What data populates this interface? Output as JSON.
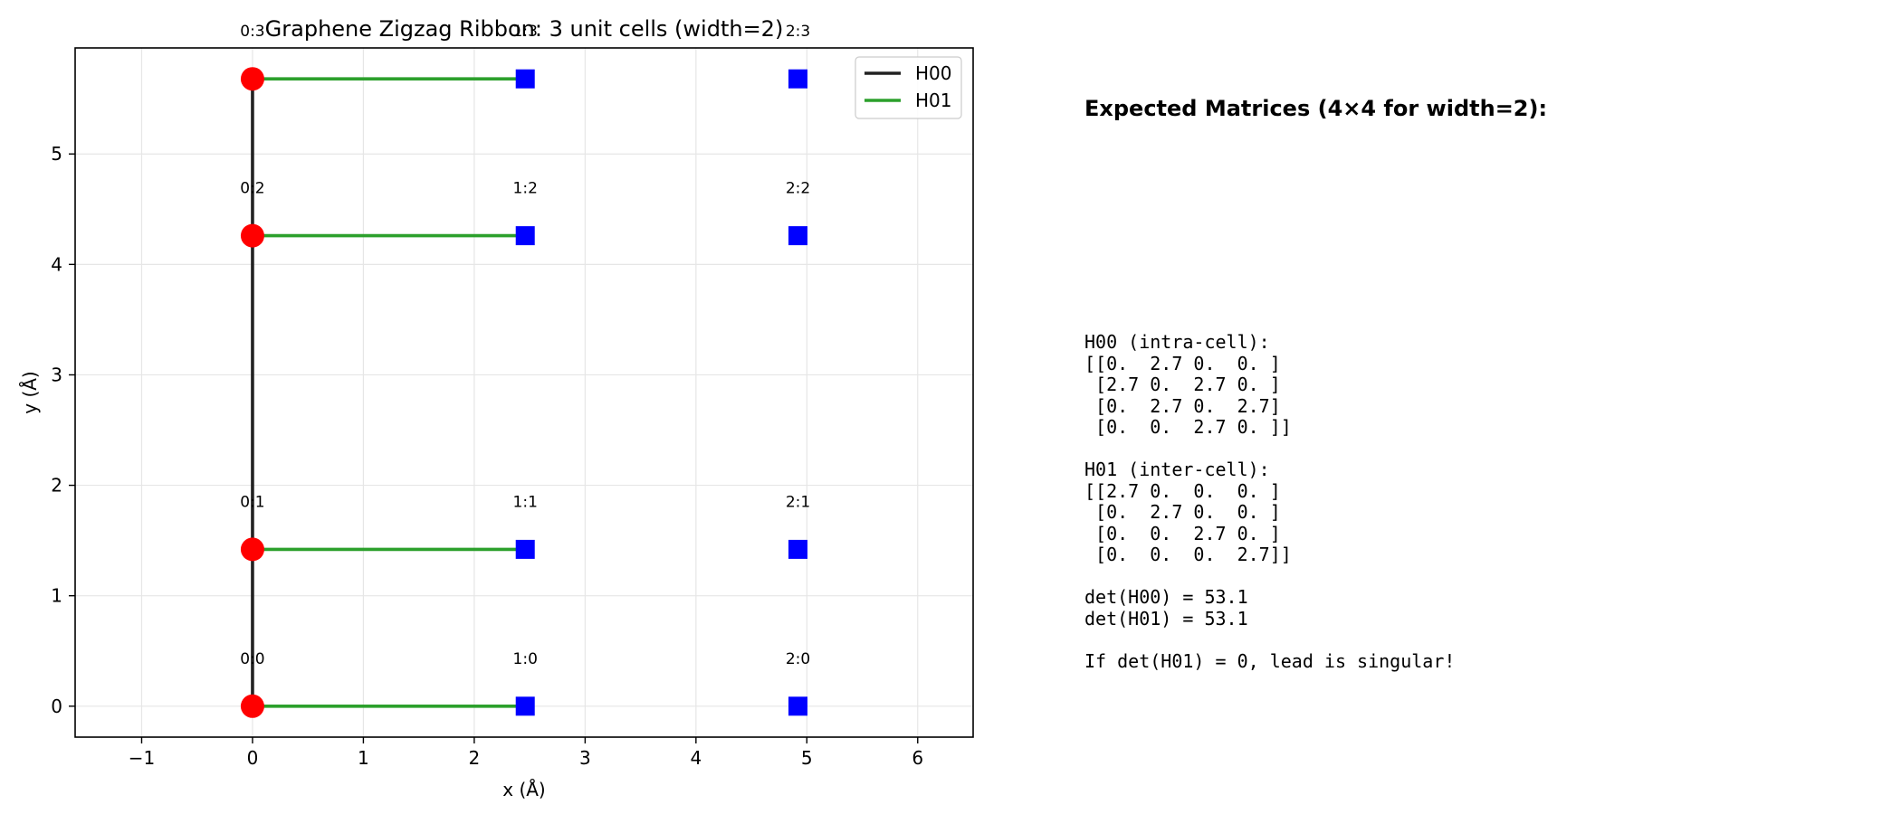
{
  "chart_data": {
    "type": "scatter",
    "title": "Graphene Zigzag Ribbon: 3 unit cells (width=2)",
    "xlabel": "x (Å)",
    "ylabel": "y (Å)",
    "xlim": [
      -1.6,
      6.5
    ],
    "ylim": [
      -0.28,
      5.96
    ],
    "xticks": [
      -1,
      0,
      1,
      2,
      3,
      4,
      5,
      6
    ],
    "yticks": [
      0,
      1,
      2,
      3,
      4,
      5
    ],
    "grid": true,
    "legend_position": "top-right",
    "points": [
      {
        "label": "0:0",
        "x": 0,
        "y": 0,
        "cell": 0
      },
      {
        "label": "0:1",
        "x": 0,
        "y": 1.42,
        "cell": 0
      },
      {
        "label": "0:2",
        "x": 0,
        "y": 4.26,
        "cell": 0
      },
      {
        "label": "0:3",
        "x": 0,
        "y": 5.68,
        "cell": 0
      },
      {
        "label": "1:0",
        "x": 2.46,
        "y": 0,
        "cell": 1
      },
      {
        "label": "1:1",
        "x": 2.46,
        "y": 1.42,
        "cell": 1
      },
      {
        "label": "1:2",
        "x": 2.46,
        "y": 4.26,
        "cell": 1
      },
      {
        "label": "1:3",
        "x": 2.46,
        "y": 5.68,
        "cell": 1
      },
      {
        "label": "2:0",
        "x": 4.92,
        "y": 0,
        "cell": 2
      },
      {
        "label": "2:1",
        "x": 4.92,
        "y": 1.42,
        "cell": 2
      },
      {
        "label": "2:2",
        "x": 4.92,
        "y": 4.26,
        "cell": 2
      },
      {
        "label": "2:3",
        "x": 4.92,
        "y": 5.68,
        "cell": 2
      }
    ],
    "series": [
      {
        "name": "H00",
        "color": "#222222",
        "segments": [
          [
            [
              0,
              0
            ],
            [
              0,
              1.42
            ]
          ],
          [
            [
              0,
              1.42
            ],
            [
              0,
              4.26
            ]
          ],
          [
            [
              0,
              4.26
            ],
            [
              0,
              5.68
            ]
          ]
        ]
      },
      {
        "name": "H01",
        "color": "#2ca02c",
        "segments": [
          [
            [
              0,
              0
            ],
            [
              2.46,
              0
            ]
          ],
          [
            [
              0,
              1.42
            ],
            [
              2.46,
              1.42
            ]
          ],
          [
            [
              0,
              4.26
            ],
            [
              2.46,
              4.26
            ]
          ],
          [
            [
              0,
              5.68
            ],
            [
              2.46,
              5.68
            ]
          ]
        ]
      }
    ],
    "colors": {
      "cell0": "#ff0000",
      "other": "#0000ff",
      "grid": "#e6e6e6"
    },
    "markers": {
      "cell0": "circle",
      "other": "square"
    }
  },
  "panel": {
    "heading": "Expected Matrices (4×4 for width=2):",
    "lines": [
      "H00 (intra-cell):",
      "[[0.  2.7 0.  0. ]",
      " [2.7 0.  2.7 0. ]",
      " [0.  2.7 0.  2.7]",
      " [0.  0.  2.7 0. ]]",
      "",
      "H01 (inter-cell):",
      "[[2.7 0.  0.  0. ]",
      " [0.  2.7 0.  0. ]",
      " [0.  0.  2.7 0. ]",
      " [0.  0.  0.  2.7]]",
      "",
      "det(H00) = 53.1",
      "det(H01) = 53.1",
      "",
      "If det(H01) = 0, lead is singular!"
    ]
  }
}
